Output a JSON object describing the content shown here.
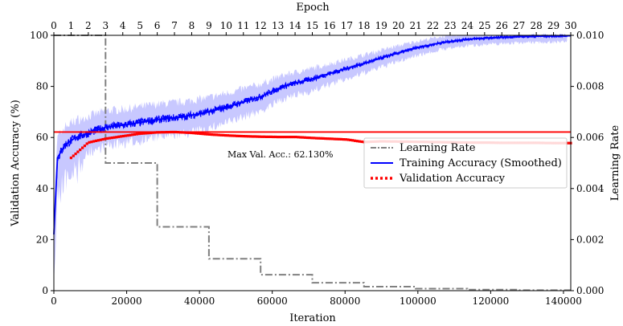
{
  "chart_data": {
    "type": "line",
    "top_axis_label": "Epoch",
    "xlabel": "Iteration",
    "ylabel": "Validation Accuracy (%)",
    "y2label": "Learning Rate",
    "xlim": [
      0,
      142000
    ],
    "ylim": [
      0,
      100
    ],
    "y2lim": [
      0,
      0.01
    ],
    "epoch_lim": [
      0,
      30
    ],
    "iterations_per_epoch": 4733.33,
    "x_ticks": [
      0,
      20000,
      40000,
      60000,
      80000,
      100000,
      120000,
      140000
    ],
    "x_tick_labels": [
      "0",
      "20000",
      "40000",
      "60000",
      "80000",
      "100000",
      "120000",
      "140000"
    ],
    "y_ticks": [
      0,
      20,
      40,
      60,
      80,
      100
    ],
    "y_tick_labels": [
      "0",
      "20",
      "40",
      "60",
      "80",
      "100"
    ],
    "y2_ticks": [
      0,
      0.002,
      0.004,
      0.006,
      0.008,
      0.01
    ],
    "y2_tick_labels": [
      "0.000",
      "0.002",
      "0.004",
      "0.006",
      "0.008",
      "0.010"
    ],
    "epoch_ticks": [
      0,
      1,
      2,
      3,
      4,
      5,
      6,
      7,
      8,
      9,
      10,
      11,
      12,
      13,
      14,
      15,
      16,
      17,
      18,
      19,
      20,
      21,
      22,
      23,
      24,
      25,
      26,
      27,
      28,
      29,
      30
    ],
    "epoch_tick_labels": [
      "0",
      "1",
      "2",
      "3",
      "4",
      "5",
      "6",
      "7",
      "8",
      "9",
      "10",
      "11",
      "12",
      "13",
      "14",
      "15",
      "16",
      "17",
      "18",
      "19",
      "20",
      "21",
      "22",
      "23",
      "24",
      "25",
      "26",
      "27",
      "28",
      "29",
      "30"
    ],
    "grid": false,
    "legend_position": "center-right",
    "max_val_acc": 62.13,
    "annotation": "Max Val. Acc.: 62.130%",
    "series": [
      {
        "name": "Learning Rate",
        "axis": "right",
        "color": "#808080",
        "style": "dash-dot",
        "x": [
          0,
          14200,
          14200,
          28400,
          28400,
          42600,
          42600,
          56800,
          56800,
          71000,
          71000,
          85200,
          85200,
          99400,
          99400,
          113600,
          113600,
          127800,
          127800,
          142000
        ],
        "y": [
          0.01,
          0.01,
          0.005,
          0.005,
          0.0025,
          0.0025,
          0.00125,
          0.00125,
          0.000625,
          0.000625,
          0.0003125,
          0.0003125,
          0.00015625,
          0.00015625,
          7.8e-05,
          7.8e-05,
          3.9e-05,
          3.9e-05,
          2e-05,
          2e-05
        ]
      },
      {
        "name": "Training Accuracy (Smoothed)",
        "axis": "left",
        "color": "#0000ff",
        "raw_color": "#c8c8ff",
        "style": "solid",
        "x": [
          0,
          1000,
          3000,
          6000,
          10000,
          14200,
          20000,
          28400,
          35000,
          42600,
          50000,
          56800,
          63000,
          71000,
          78000,
          85200,
          92000,
          99400,
          106000,
          113600,
          120000,
          127800,
          135000,
          142000
        ],
        "y": [
          22,
          52,
          57,
          60,
          62,
          64,
          65,
          67,
          68,
          70,
          73,
          76,
          80,
          83,
          86,
          89,
          92,
          95,
          97,
          98.5,
          99,
          99.5,
          99.7,
          99.8
        ]
      },
      {
        "name": "Validation Accuracy",
        "axis": "left",
        "color": "#ff0000",
        "style": "dotted",
        "x": [
          4733,
          9467,
          14200,
          18933,
          23667,
          28400,
          33133,
          37867,
          42600,
          47333,
          52067,
          56800,
          61533,
          66267,
          71000,
          75733,
          80467,
          85200,
          89933,
          94667,
          99400,
          104133,
          108867,
          113600,
          118333,
          123067,
          127800,
          132533,
          137267,
          142000
        ],
        "y": [
          52,
          58,
          59.5,
          60.5,
          61.5,
          62,
          62.13,
          61.8,
          61.2,
          60.8,
          60.5,
          60.3,
          60.2,
          60.2,
          59.8,
          59.5,
          59.2,
          58.2,
          58.5,
          58.4,
          58.3,
          58.2,
          58.1,
          58.0,
          58.0,
          57.9,
          57.9,
          57.9,
          57.8,
          57.8
        ]
      }
    ]
  }
}
